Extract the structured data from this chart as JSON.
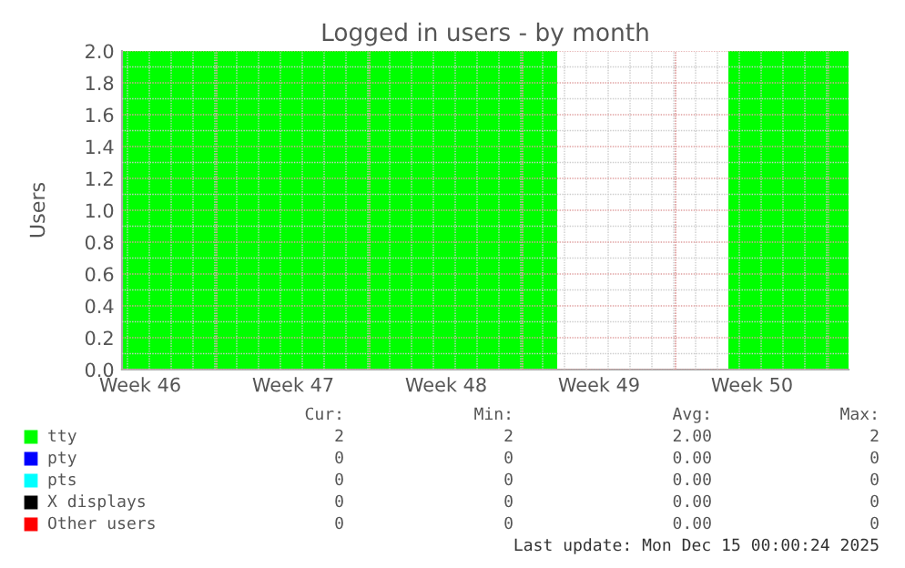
{
  "chart_data": {
    "type": "area",
    "title": "Logged in users - by month",
    "ylabel": "Users",
    "x": [
      "2025-11-11T18:00",
      "2025-12-01T16:00",
      "2025-12-05T12:00",
      "2025-12-09T12:00",
      "2025-12-15T00:00"
    ],
    "xlim": [
      "2025-11-11T18:00",
      "2025-12-15T00:00"
    ],
    "xticks": [
      {
        "value": "2025-11-12T14:00",
        "label": "Week 46"
      },
      {
        "value": "2025-11-19T14:00",
        "label": "Week 47"
      },
      {
        "value": "2025-11-26T14:00",
        "label": "Week 48"
      },
      {
        "value": "2025-12-03T14:00",
        "label": "Week 49"
      },
      {
        "value": "2025-12-10T14:00",
        "label": "Week 50"
      }
    ],
    "ylim": [
      0,
      2
    ],
    "yticks": [
      {
        "value": 0,
        "label": "0.0"
      },
      {
        "value": 0.2,
        "label": "0.2"
      },
      {
        "value": 0.4,
        "label": "0.4"
      },
      {
        "value": 0.6,
        "label": "0.6"
      },
      {
        "value": 0.8,
        "label": "0.8"
      },
      {
        "value": 1,
        "label": "1.0"
      },
      {
        "value": 1.2,
        "label": "1.2"
      },
      {
        "value": 1.4,
        "label": "1.4"
      },
      {
        "value": 1.6,
        "label": "1.6"
      },
      {
        "value": 1.8,
        "label": "1.8"
      },
      {
        "value": 2,
        "label": "2.0"
      }
    ],
    "grid": true,
    "legend": "bottom",
    "series": [
      {
        "name": "tty",
        "color": "#00ff00",
        "values": [
          2,
          2,
          null,
          2,
          2
        ]
      },
      {
        "name": "pty",
        "color": "#0000ff",
        "values": [
          null,
          null,
          null,
          null,
          null
        ]
      },
      {
        "name": "pts",
        "color": "#00ffff",
        "values": [
          null,
          null,
          null,
          null,
          null
        ]
      },
      {
        "name": "X displays",
        "color": "#000000",
        "values": [
          null,
          null,
          null,
          null,
          null
        ]
      },
      {
        "name": "Other users",
        "color": "#ff0000",
        "values": [
          null,
          null,
          null,
          null,
          null
        ]
      }
    ],
    "annotations": [
      "Cur:",
      "Min:",
      "Avg:",
      "Max:",
      "2",
      "2",
      "2.00",
      "2",
      "0",
      "0",
      "0.00",
      "0",
      "0",
      "0",
      "0.00",
      "0",
      "0",
      "0",
      "0.00",
      "0",
      "0",
      "0",
      "0.00",
      "0",
      "Last update: Mon Dec 15 00:00:24 2025"
    ]
  }
}
